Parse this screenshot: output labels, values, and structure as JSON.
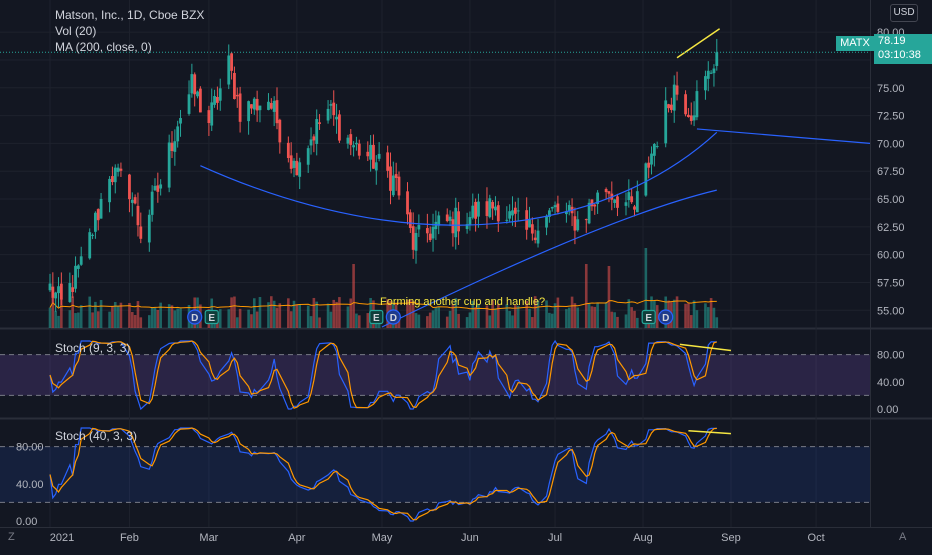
{
  "symbol_title": "Matson, Inc., 1D, Cboe BZX",
  "vol_label": "Vol (20)",
  "ma_label": "MA (200, close, 0)",
  "stoch1_label": "Stoch (9, 3, 3)",
  "stoch2_label": "Stoch (40, 3, 3)",
  "currency": "USD",
  "ticker": "MATX",
  "last_price": "78.19",
  "countdown": "03:10:38",
  "annotation": "Forming another cup and handle?",
  "price_axis": [
    "80.00",
    "77.50",
    "75.00",
    "72.50",
    "70.00",
    "67.50",
    "65.00",
    "62.50",
    "60.00",
    "57.50",
    "55.00"
  ],
  "stoch1_axis": [
    "80.00",
    "40.00",
    "0.00"
  ],
  "stoch2_axis": [
    "80.00",
    "40.00",
    "0.00"
  ],
  "time_axis": [
    "2021",
    "Feb",
    "Mar",
    "Apr",
    "May",
    "Jun",
    "Jul",
    "Aug",
    "Sep",
    "Oct"
  ],
  "bottom_left": "Z",
  "bottom_right": "A",
  "event_markers": [
    "D",
    "E",
    "E",
    "D",
    "E",
    "D"
  ],
  "colors": {
    "up": "#26a69a",
    "down": "#ef5350",
    "ma": "#2962ff",
    "stoch_k": "#2962ff",
    "stoch_d": "#ff9800",
    "trend": "#f5e642",
    "bg": "#131722"
  },
  "chart_data": {
    "type": "candlestick",
    "title": "Matson, Inc., 1D, Cboe BZX",
    "ylim": [
      53.5,
      81
    ],
    "x_range": [
      "2021-01-04",
      "2021-10-20"
    ],
    "close_anchors": [
      {
        "date": "2021-01-04",
        "close": 57
      },
      {
        "date": "2021-01-08",
        "close": 55.5
      },
      {
        "date": "2021-01-15",
        "close": 59
      },
      {
        "date": "2021-01-20",
        "close": 63
      },
      {
        "date": "2021-01-25",
        "close": 67.5
      },
      {
        "date": "2021-02-01",
        "close": 66
      },
      {
        "date": "2021-02-05",
        "close": 62
      },
      {
        "date": "2021-02-12",
        "close": 66.5
      },
      {
        "date": "2021-02-18",
        "close": 72
      },
      {
        "date": "2021-02-23",
        "close": 75
      },
      {
        "date": "2021-03-01",
        "close": 72
      },
      {
        "date": "2021-03-08",
        "close": 77
      },
      {
        "date": "2021-03-12",
        "close": 73
      },
      {
        "date": "2021-03-22",
        "close": 74
      },
      {
        "date": "2021-03-31",
        "close": 68
      },
      {
        "date": "2021-04-07",
        "close": 71
      },
      {
        "date": "2021-04-12",
        "close": 73
      },
      {
        "date": "2021-04-20",
        "close": 70
      },
      {
        "date": "2021-04-28",
        "close": 68.5
      },
      {
        "date": "2021-05-06",
        "close": 66.5
      },
      {
        "date": "2021-05-12",
        "close": 61
      },
      {
        "date": "2021-05-20",
        "close": 62.5
      },
      {
        "date": "2021-06-01",
        "close": 63.5
      },
      {
        "date": "2021-06-10",
        "close": 64.5
      },
      {
        "date": "2021-06-21",
        "close": 62
      },
      {
        "date": "2021-07-01",
        "close": 64
      },
      {
        "date": "2021-07-09",
        "close": 63
      },
      {
        "date": "2021-07-19",
        "close": 66
      },
      {
        "date": "2021-07-29",
        "close": 64
      },
      {
        "date": "2021-08-05",
        "close": 70
      },
      {
        "date": "2021-08-12",
        "close": 75
      },
      {
        "date": "2021-08-18",
        "close": 73
      },
      {
        "date": "2021-08-24",
        "close": 76
      },
      {
        "date": "2021-08-27",
        "close": 78.19
      }
    ],
    "ma200_endpoints": [
      {
        "date": "2021-05-01",
        "value": 53.5
      },
      {
        "date": "2021-08-27",
        "value": 65.8
      }
    ],
    "cup_curve_anchors": [
      {
        "date": "2021-02-26",
        "value": 68
      },
      {
        "date": "2021-05-20",
        "value": 58.5
      },
      {
        "date": "2021-07-24",
        "value": 63
      },
      {
        "date": "2021-08-27",
        "value": 71
      }
    ],
    "resistance_line": [
      {
        "date": "2021-08-20",
        "value": 71.3
      },
      {
        "date": "2021-10-20",
        "value": 70
      }
    ],
    "price_trend_line": [
      {
        "date": "2021-08-13",
        "value": 77.7
      },
      {
        "date": "2021-08-28",
        "value": 80.3
      }
    ],
    "stoch1_trend_line": [
      {
        "date": "2021-08-14",
        "value": 95
      },
      {
        "date": "2021-09-01",
        "value": 86
      }
    ],
    "stoch2_trend_line": [
      {
        "date": "2021-08-17",
        "value": 97
      },
      {
        "date": "2021-09-01",
        "value": 94
      }
    ]
  }
}
